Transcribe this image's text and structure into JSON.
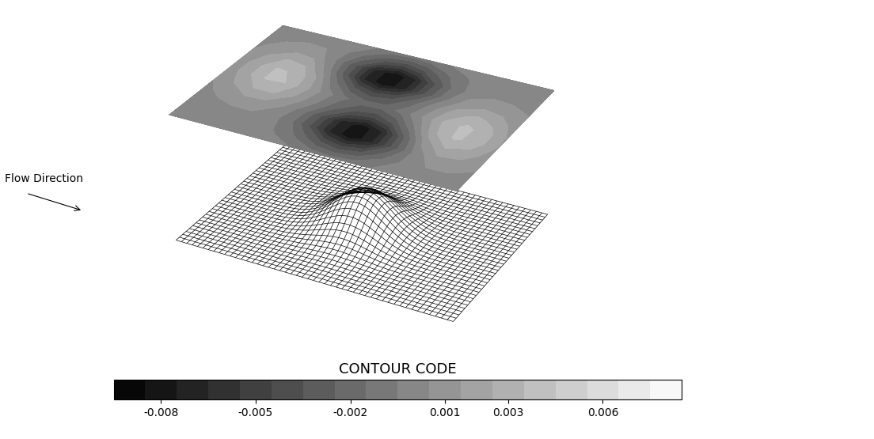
{
  "chart_data": {
    "type": "contour",
    "tick_labels": false,
    "annotations": [
      "Flow Direction"
    ],
    "values": [
      [
        0.0,
        0.0,
        0.0,
        0.0,
        0.0,
        -0.0002,
        -0.0005,
        -0.001,
        -0.0012,
        -0.0009,
        -0.0005,
        -0.0001,
        0.0001,
        0.0001,
        0.0001
      ],
      [
        0.0,
        0.0001,
        0.0002,
        0.0001,
        -0.0001,
        -0.0007,
        -0.0019,
        -0.0035,
        -0.0043,
        -0.0035,
        -0.0017,
        -0.0003,
        0.0004,
        0.0004,
        0.0002
      ],
      [
        0.0001,
        0.0003,
        0.0005,
        0.0005,
        0.0,
        -0.0013,
        -0.0037,
        -0.0068,
        -0.0083,
        -0.0066,
        -0.0032,
        -0.0003,
        0.0012,
        0.0011,
        0.0006
      ],
      [
        0.0003,
        0.0008,
        0.0014,
        0.0013,
        0.0005,
        -0.0011,
        -0.0037,
        -0.0068,
        -0.0082,
        -0.0065,
        -0.0027,
        0.0008,
        0.0025,
        0.0021,
        0.001
      ],
      [
        0.0006,
        0.0016,
        0.0026,
        0.0026,
        0.0014,
        -0.0002,
        -0.002,
        -0.0037,
        -0.0044,
        -0.0032,
        -0.0006,
        0.0023,
        0.0037,
        0.003,
        0.0014
      ],
      [
        0.0008,
        0.0022,
        0.0036,
        0.0035,
        0.0019,
        0.0001,
        -0.0013,
        -0.0021,
        -0.0021,
        -0.0011,
        0.0007,
        0.0027,
        0.0038,
        0.003,
        0.0014
      ],
      [
        0.0008,
        0.0022,
        0.0036,
        0.0034,
        0.0015,
        -0.0012,
        -0.0034,
        -0.0044,
        -0.0037,
        -0.0018,
        0.0002,
        0.002,
        0.0028,
        0.0022,
        0.001
      ],
      [
        0.0006,
        0.0016,
        0.0026,
        0.0023,
        0.0002,
        -0.0031,
        -0.0067,
        -0.0083,
        -0.0068,
        -0.0036,
        -0.0009,
        0.0008,
        0.0014,
        0.0012,
        0.0006
      ],
      [
        0.0003,
        0.0008,
        0.0013,
        0.0011,
        -0.0006,
        -0.0034,
        -0.0067,
        -0.0083,
        -0.0068,
        -0.0037,
        -0.0012,
        0.0001,
        0.0005,
        0.0004,
        0.0002
      ],
      [
        0.0001,
        0.0003,
        0.0005,
        0.0004,
        -0.0004,
        -0.0018,
        -0.0035,
        -0.0043,
        -0.0035,
        -0.0019,
        -0.0007,
        -0.0001,
        0.0001,
        0.0001,
        0.0001
      ],
      [
        0.0,
        0.0001,
        0.0001,
        0.0001,
        -0.0001,
        -0.0005,
        -0.001,
        -0.0012,
        -0.001,
        -0.0005,
        -0.0002,
        -0.0001,
        0.0,
        0.0,
        0.0
      ]
    ],
    "colorbar": {
      "label": "CONTOUR CODE",
      "range": [
        -0.0095,
        0.0085
      ],
      "ticks": [
        -0.008,
        -0.005,
        -0.002,
        0.001,
        0.003,
        0.006
      ]
    }
  }
}
